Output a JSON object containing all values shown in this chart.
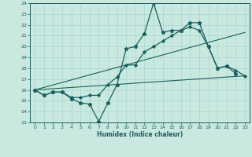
{
  "xlabel": "Humidex (Indice chaleur)",
  "ylabel": "",
  "xlim": [
    -0.5,
    23.5
  ],
  "ylim": [
    13,
    24
  ],
  "yticks": [
    13,
    14,
    15,
    16,
    17,
    18,
    19,
    20,
    21,
    22,
    23,
    24
  ],
  "xticks": [
    0,
    1,
    2,
    3,
    4,
    5,
    6,
    7,
    8,
    9,
    10,
    11,
    12,
    13,
    14,
    15,
    16,
    17,
    18,
    19,
    20,
    21,
    22,
    23
  ],
  "bg_color": "#c8e8e0",
  "grid_color": "#a8d8cc",
  "line_color": "#1a6060",
  "line1_x": [
    0,
    1,
    2,
    3,
    4,
    5,
    6,
    7,
    8,
    9,
    10,
    11,
    12,
    13,
    14,
    15,
    16,
    17,
    18,
    19,
    20,
    21,
    22
  ],
  "line1_y": [
    16.0,
    15.5,
    15.8,
    15.8,
    15.2,
    14.8,
    14.7,
    13.1,
    14.8,
    16.5,
    19.8,
    20.0,
    21.2,
    24.0,
    21.3,
    21.5,
    21.5,
    22.2,
    22.2,
    20.0,
    18.0,
    18.2,
    17.5
  ],
  "line2_x": [
    0,
    1,
    2,
    3,
    4,
    5,
    6,
    7,
    8,
    9,
    10,
    11,
    12,
    13,
    14,
    15,
    16,
    17,
    18,
    19,
    20,
    21,
    22,
    23
  ],
  "line2_y": [
    16.0,
    15.5,
    15.8,
    15.8,
    15.3,
    15.3,
    15.5,
    15.5,
    16.5,
    17.2,
    18.3,
    18.3,
    19.5,
    20.0,
    20.5,
    21.0,
    21.5,
    21.8,
    21.5,
    20.0,
    18.0,
    18.2,
    17.8,
    17.3
  ],
  "line3_x": [
    0,
    23
  ],
  "line3_y": [
    16.0,
    21.3
  ],
  "line4_x": [
    0,
    23
  ],
  "line4_y": [
    16.0,
    17.3
  ]
}
